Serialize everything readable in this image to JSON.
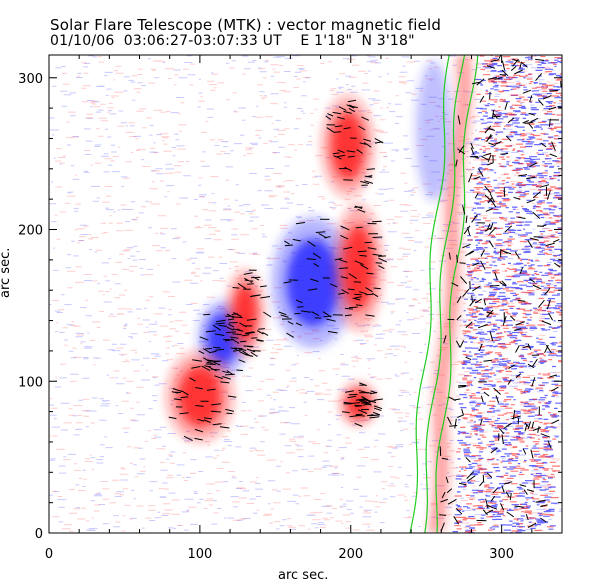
{
  "header": {
    "title": "Solar Flare Telescope (MTK) : vector magnetic field",
    "subtitle": "01/10/06  03:06:27-03:07:33 UT    E 1'18\"  N 3'18\""
  },
  "chart_data": {
    "type": "heatmap",
    "title": "Solar Flare Telescope (MTK) : vector magnetic field",
    "subtitle": "01/10/06  03:06:27-03:07:33 UT    E 1'18\"  N 3'18\"",
    "xlabel": "arc sec.",
    "ylabel": "arc sec.",
    "xlim": [
      0,
      340
    ],
    "ylim": [
      0,
      315
    ],
    "xticks": [
      0,
      100,
      200,
      300
    ],
    "yticks": [
      0,
      100,
      200,
      300
    ],
    "colors": {
      "positive_polarity": "#ff2020",
      "negative_polarity": "#2a2aff",
      "contour": "#22cc22",
      "vectors": "#000000",
      "background": "#ffffff"
    },
    "regions": [
      {
        "polarity": "negative",
        "x": 115,
        "y": 128,
        "rx": 13,
        "ry": 21
      },
      {
        "polarity": "negative",
        "x": 175,
        "y": 165,
        "rx": 22,
        "ry": 36
      },
      {
        "polarity": "positive",
        "x": 100,
        "y": 90,
        "rx": 18,
        "ry": 25
      },
      {
        "polarity": "positive",
        "x": 130,
        "y": 145,
        "rx": 10,
        "ry": 24
      },
      {
        "polarity": "positive",
        "x": 205,
        "y": 175,
        "rx": 13,
        "ry": 35
      },
      {
        "polarity": "positive",
        "x": 198,
        "y": 255,
        "rx": 14,
        "ry": 28
      },
      {
        "polarity": "positive",
        "x": 205,
        "y": 85,
        "rx": 10,
        "ry": 12
      }
    ]
  }
}
